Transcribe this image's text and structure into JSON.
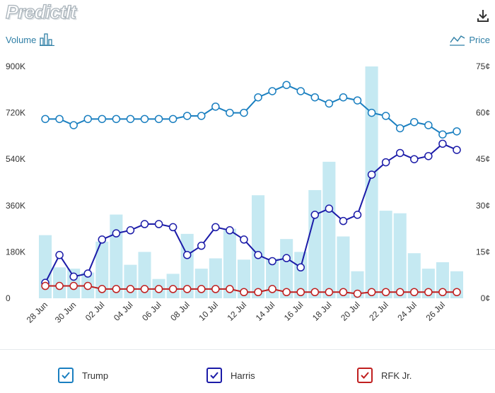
{
  "header": {
    "logo_text": "PredictIt",
    "volume_label": "Volume",
    "price_label": "Price"
  },
  "chart_data": {
    "type": "bar+line",
    "x": [
      "28 Jun",
      "29 Jun",
      "30 Jun",
      "01 Jul",
      "02 Jul",
      "03 Jul",
      "04 Jul",
      "05 Jul",
      "06 Jul",
      "07 Jul",
      "08 Jul",
      "09 Jul",
      "10 Jul",
      "11 Jul",
      "12 Jul",
      "13 Jul",
      "14 Jul",
      "15 Jul",
      "16 Jul",
      "17 Jul",
      "18 Jul",
      "19 Jul",
      "20 Jul",
      "21 Jul",
      "22 Jul",
      "23 Jul",
      "24 Jul",
      "25 Jul",
      "26 Jul",
      "27 Jul"
    ],
    "x_tick_labels": [
      "28 Jun",
      "30 Jun",
      "02 Jul",
      "04 Jul",
      "06 Jul",
      "08 Jul",
      "10 Jul",
      "12 Jul",
      "14 Jul",
      "16 Jul",
      "18 Jul",
      "20 Jul",
      "22 Jul",
      "24 Jul",
      "26 Jul"
    ],
    "left_axis": {
      "label": "Volume",
      "ticks": [
        "0",
        "180K",
        "360K",
        "540K",
        "720K",
        "900K"
      ],
      "range": [
        0,
        900000
      ]
    },
    "right_axis": {
      "label": "Price",
      "ticks": [
        "0¢",
        "15¢",
        "30¢",
        "45¢",
        "60¢",
        "75¢"
      ],
      "range": [
        0,
        75
      ]
    },
    "volume": [
      245000,
      120000,
      115000,
      100000,
      220000,
      325000,
      130000,
      180000,
      75000,
      95000,
      250000,
      115000,
      155000,
      270000,
      150000,
      400000,
      155000,
      230000,
      180000,
      420000,
      530000,
      240000,
      105000,
      900000,
      340000,
      330000,
      175000,
      115000,
      140000,
      105000
    ],
    "series": [
      {
        "name": "Trump",
        "color": "#1a7fc0",
        "values": [
          58,
          58,
          56,
          58,
          58,
          58,
          58,
          58,
          58,
          58,
          59,
          59,
          62,
          60,
          60,
          65,
          67,
          69,
          67,
          65,
          63,
          65,
          64,
          60,
          59,
          55,
          57,
          56,
          53,
          54
        ]
      },
      {
        "name": "Harris",
        "color": "#1b1ba8",
        "values": [
          5,
          14,
          7,
          8,
          19,
          21,
          22,
          24,
          24,
          23,
          14,
          17,
          23,
          22,
          19,
          14,
          12,
          13,
          10,
          27,
          29,
          25,
          27,
          40,
          44,
          47,
          45,
          46,
          50,
          48
        ]
      },
      {
        "name": "RFK Jr.",
        "color": "#c01f1f",
        "values": [
          4,
          4,
          4,
          4,
          3,
          3,
          3,
          3,
          3,
          3,
          3,
          3,
          3,
          3,
          2,
          2,
          3,
          2,
          2,
          2,
          2,
          2,
          1.5,
          2,
          2,
          2,
          2,
          2,
          2,
          2
        ]
      }
    ],
    "legend": {
      "position": "bottom"
    },
    "colors": {
      "bar": "#c5e9f2",
      "axis_text": "#333333",
      "accent": "#2f7fa6"
    }
  }
}
